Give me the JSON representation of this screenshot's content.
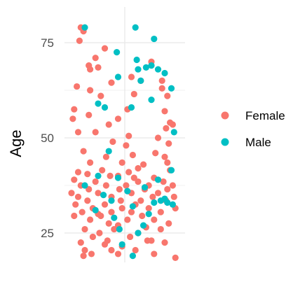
{
  "chart_data": {
    "type": "scatter",
    "title": "",
    "xlabel": "",
    "ylabel": "Age",
    "ylim": [
      15,
      82
    ],
    "yticks": [
      25,
      50,
      75
    ],
    "grid": true,
    "legend_position": "right",
    "jitter": true,
    "series": [
      {
        "name": "Female",
        "color": "#F8766D",
        "points": [
          [
            -0.33,
            79
          ],
          [
            -0.31,
            78
          ],
          [
            -0.34,
            75.5
          ],
          [
            -0.15,
            73.5
          ],
          [
            -0.22,
            71
          ],
          [
            -0.27,
            69
          ],
          [
            -0.26,
            68
          ],
          [
            -0.2,
            68.5
          ],
          [
            0.2,
            70
          ],
          [
            0.05,
            66
          ],
          [
            0.12,
            65
          ],
          [
            0.28,
            65
          ],
          [
            -0.1,
            64.5
          ],
          [
            -0.36,
            63.5
          ],
          [
            -0.26,
            62.5
          ],
          [
            -0.18,
            61
          ],
          [
            0.07,
            61.5
          ],
          [
            0.28,
            63
          ],
          [
            0.32,
            61
          ],
          [
            -0.38,
            57.5
          ],
          [
            -0.27,
            56
          ],
          [
            0.02,
            57.5
          ],
          [
            0.3,
            57
          ],
          [
            -0.39,
            55
          ],
          [
            -0.05,
            55
          ],
          [
            -0.12,
            53.5
          ],
          [
            0.34,
            54
          ],
          [
            0.36,
            53.5
          ],
          [
            0.31,
            52.5
          ],
          [
            -0.35,
            51.5
          ],
          [
            -0.22,
            51.5
          ],
          [
            0.03,
            50.5
          ],
          [
            0.25,
            50
          ],
          [
            -0.09,
            49
          ],
          [
            0.01,
            48
          ],
          [
            0.33,
            48.5
          ],
          [
            -0.31,
            46.5
          ],
          [
            -0.14,
            45
          ],
          [
            0.06,
            45.5
          ],
          [
            0.23,
            46
          ],
          [
            -0.26,
            43.5
          ],
          [
            -0.02,
            43.5
          ],
          [
            0.14,
            43
          ],
          [
            0.32,
            43.5
          ],
          [
            -0.35,
            41
          ],
          [
            -0.17,
            41.5
          ],
          [
            0.03,
            41
          ],
          [
            0.34,
            41.5
          ],
          [
            -0.28,
            40.5
          ],
          [
            -0.11,
            40
          ],
          [
            -0.05,
            40
          ],
          [
            0.07,
            39.5
          ],
          [
            0.22,
            39.5
          ],
          [
            -0.38,
            39
          ],
          [
            -0.22,
            38.5
          ],
          [
            0.1,
            38.5
          ],
          [
            0.29,
            38.5
          ],
          [
            -0.33,
            37.5
          ],
          [
            -0.14,
            37.5
          ],
          [
            0.01,
            37.5
          ],
          [
            0.18,
            37.5
          ],
          [
            0.36,
            37.5
          ],
          [
            -0.27,
            36.5
          ],
          [
            -0.04,
            36.5
          ],
          [
            0.15,
            36.5
          ],
          [
            0.32,
            36.5
          ],
          [
            -0.4,
            35.5
          ],
          [
            -0.2,
            35.5
          ],
          [
            0.05,
            35.5
          ],
          [
            0.25,
            35.5
          ],
          [
            -0.35,
            34.5
          ],
          [
            -0.1,
            34.5
          ],
          [
            0.21,
            34.5
          ],
          [
            0.37,
            34.5
          ],
          [
            -0.28,
            33.5
          ],
          [
            -0.03,
            33.5
          ],
          [
            0.12,
            33.5
          ],
          [
            0.31,
            33.5
          ],
          [
            -0.37,
            32.5
          ],
          [
            -0.15,
            32.5
          ],
          [
            0.08,
            32.5
          ],
          [
            -0.24,
            31.5
          ],
          [
            -0.02,
            31.5
          ],
          [
            0.18,
            31.5
          ],
          [
            0.38,
            31.5
          ],
          [
            -0.32,
            30.5
          ],
          [
            -0.1,
            30.5
          ],
          [
            0.05,
            30.5
          ],
          [
            0.27,
            30.5
          ],
          [
            -0.38,
            29.5
          ],
          [
            -0.18,
            29.5
          ],
          [
            0.13,
            29.5
          ],
          [
            -0.26,
            28.5
          ],
          [
            0.02,
            28.5
          ],
          [
            0.22,
            28.5
          ],
          [
            -0.12,
            27.5
          ],
          [
            0.33,
            27.5
          ],
          [
            -0.05,
            27
          ],
          [
            0.16,
            26.5
          ],
          [
            -0.3,
            26
          ],
          [
            -0.08,
            26
          ],
          [
            0.27,
            26
          ],
          [
            -0.19,
            25
          ],
          [
            0.1,
            25
          ],
          [
            -0.24,
            24
          ],
          [
            0.04,
            24
          ],
          [
            -0.33,
            22.5
          ],
          [
            -0.13,
            23
          ],
          [
            0.17,
            23
          ],
          [
            -0.02,
            21.5
          ],
          [
            0.3,
            22.5
          ],
          [
            -0.3,
            20.5
          ],
          [
            -0.1,
            20.5
          ],
          [
            0.08,
            20.5
          ],
          [
            -0.31,
            19
          ],
          [
            -0.25,
            19.5
          ],
          [
            -0.05,
            19.5
          ],
          [
            0.22,
            19.5
          ],
          [
            0.38,
            18.5
          ],
          [
            -0.15,
            22
          ],
          [
            0.2,
            23
          ],
          [
            -0.2,
            30
          ],
          [
            0.1,
            42
          ],
          [
            0.3,
            45
          ]
        ]
      },
      {
        "name": "Male",
        "color": "#00BFC4",
        "points": [
          [
            -0.3,
            79
          ],
          [
            0.08,
            79
          ],
          [
            0.22,
            76
          ],
          [
            -0.06,
            72.5
          ],
          [
            0.09,
            70.5
          ],
          [
            0.2,
            69
          ],
          [
            0.16,
            68.5
          ],
          [
            0.25,
            68
          ],
          [
            0.1,
            68
          ],
          [
            0.3,
            67
          ],
          [
            -0.05,
            66
          ],
          [
            0.12,
            65
          ],
          [
            0.35,
            63
          ],
          [
            0.2,
            60
          ],
          [
            -0.2,
            59
          ],
          [
            -0.15,
            58
          ],
          [
            0.05,
            58
          ],
          [
            0.37,
            51.5
          ],
          [
            -0.12,
            46.5
          ],
          [
            0.35,
            41.5
          ],
          [
            -0.2,
            40
          ],
          [
            -0.05,
            39.5
          ],
          [
            0.25,
            39
          ],
          [
            -0.3,
            37.5
          ],
          [
            0.15,
            37
          ],
          [
            0.02,
            36
          ],
          [
            -0.16,
            35
          ],
          [
            0.3,
            34
          ],
          [
            -0.1,
            33.5
          ],
          [
            0.22,
            33
          ],
          [
            0.27,
            33.5
          ],
          [
            0.32,
            33
          ],
          [
            0.36,
            32.5
          ],
          [
            0.06,
            32
          ],
          [
            -0.22,
            31
          ],
          [
            0.18,
            30
          ],
          [
            -0.08,
            29
          ],
          [
            0.14,
            27
          ],
          [
            -0.04,
            26
          ],
          [
            0.1,
            25
          ],
          [
            -0.02,
            22
          ],
          [
            0.06,
            19
          ]
        ]
      }
    ]
  }
}
